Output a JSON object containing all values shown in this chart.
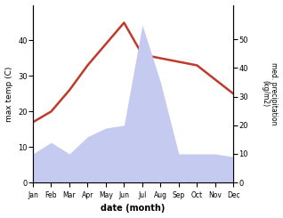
{
  "months": [
    "Jan",
    "Feb",
    "Mar",
    "Apr",
    "May",
    "Jun",
    "Jul",
    "Aug",
    "Sep",
    "Oct",
    "Nov",
    "Dec"
  ],
  "month_indices": [
    1,
    2,
    3,
    4,
    5,
    6,
    7,
    8,
    9,
    10,
    11,
    12
  ],
  "temperature": [
    17,
    20,
    26,
    33,
    39,
    45,
    36,
    35,
    34,
    33,
    29,
    25
  ],
  "precipitation": [
    10,
    14,
    10,
    16,
    19,
    20,
    55,
    35,
    10,
    10,
    10,
    9
  ],
  "temp_color": "#c0392b",
  "precip_fill_color": "#c5caf0",
  "temp_ylim": [
    0,
    50
  ],
  "precip_ylim": [
    0,
    62
  ],
  "temp_yticks": [
    0,
    10,
    20,
    30,
    40
  ],
  "precip_yticks": [
    0,
    10,
    20,
    30,
    40,
    50
  ],
  "xlabel": "date (month)",
  "ylabel_left": "max temp (C)",
  "ylabel_right": "med. precipitation\n(kg/m2)",
  "figsize": [
    3.18,
    2.45
  ],
  "dpi": 100
}
